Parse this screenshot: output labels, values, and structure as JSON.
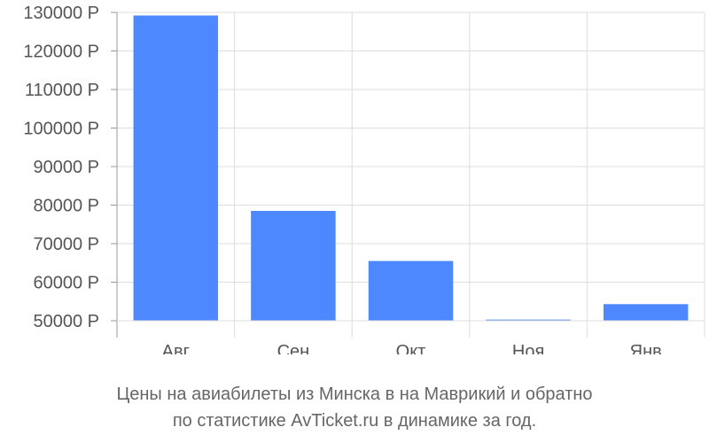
{
  "chart_data": {
    "type": "bar",
    "categories": [
      "Авг",
      "Сен",
      "Окт",
      "Ноя",
      "Янв"
    ],
    "values": [
      129200,
      78500,
      65500,
      50300,
      54300
    ],
    "y_ticks": [
      "50000 Р",
      "60000 Р",
      "70000 Р",
      "80000 Р",
      "90000 Р",
      "100000 Р",
      "110000 Р",
      "120000 Р",
      "130000 Р"
    ],
    "ylim": [
      50000,
      130000
    ],
    "title": "",
    "xlabel": "",
    "ylabel": "",
    "grid": true,
    "legend": "none",
    "colors": {
      "bar": "#4d88ff",
      "grid": "#dddddd",
      "axis": "#999999",
      "text": "#555555"
    }
  },
  "caption": {
    "line1": "Цены на авиабилеты из Минска в на Маврикий и обратно",
    "line2": "по статистике AvTicket.ru в динамике за год."
  }
}
